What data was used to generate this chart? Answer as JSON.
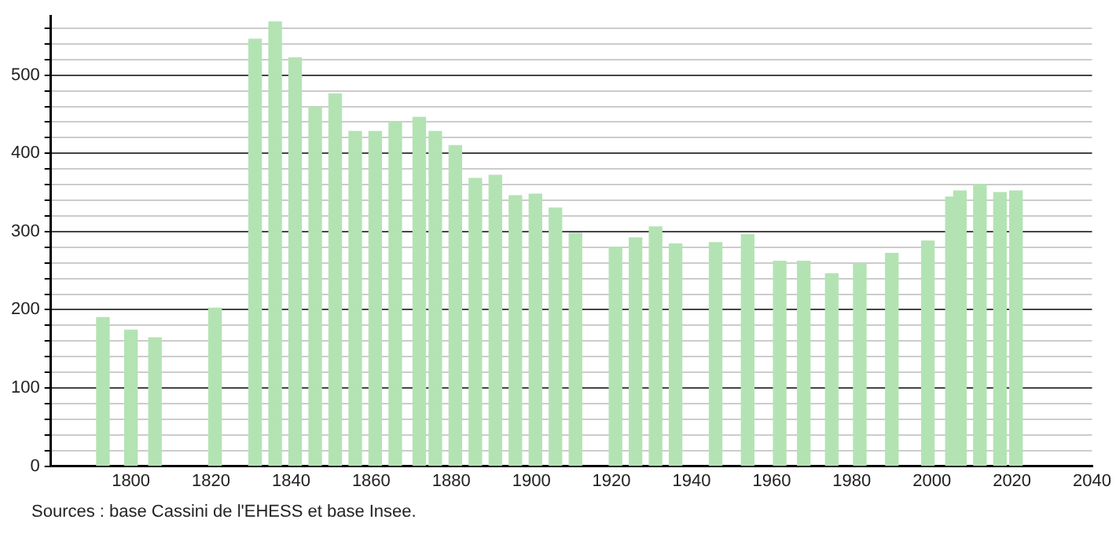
{
  "chart_data": {
    "type": "bar",
    "color": "#b3e3b3",
    "x": [
      1793,
      1800,
      1806,
      1821,
      1831,
      1836,
      1841,
      1846,
      1851,
      1856,
      1861,
      1866,
      1872,
      1876,
      1881,
      1886,
      1891,
      1896,
      1901,
      1906,
      1911,
      1921,
      1926,
      1931,
      1936,
      1946,
      1954,
      1962,
      1968,
      1975,
      1982,
      1990,
      1999,
      2005,
      2007,
      2012,
      2017,
      2021
    ],
    "values": [
      190,
      174,
      164,
      202,
      546,
      568,
      522,
      459,
      476,
      428,
      428,
      440,
      446,
      428,
      410,
      368,
      372,
      346,
      348,
      330,
      298,
      280,
      292,
      306,
      284,
      286,
      296,
      262,
      262,
      246,
      259,
      272,
      288,
      344,
      352,
      360,
      350,
      352
    ],
    "xlim": [
      1780,
      2040
    ],
    "xticks": [
      1800,
      1820,
      1840,
      1860,
      1880,
      1900,
      1920,
      1940,
      1960,
      1980,
      2000,
      2020,
      2040
    ],
    "ylim": [
      0,
      576
    ],
    "yticks": [
      0,
      {
        "value": 20,
        "label": null
      },
      {
        "value": 40,
        "label": null
      },
      {
        "value": 60,
        "label": null
      },
      {
        "value": 80,
        "label": null
      },
      100,
      {
        "value": 120,
        "label": null
      },
      {
        "value": 140,
        "label": null
      },
      {
        "value": 160,
        "label": null
      },
      {
        "value": 180,
        "label": null
      },
      200,
      {
        "value": 220,
        "label": null
      },
      {
        "value": 240,
        "label": null
      },
      {
        "value": 260,
        "label": null
      },
      {
        "value": 280,
        "label": null
      },
      300,
      {
        "value": 320,
        "label": null
      },
      {
        "value": 340,
        "label": null
      },
      {
        "value": 360,
        "label": null
      },
      {
        "value": 380,
        "label": null
      },
      400,
      {
        "value": 420,
        "label": null
      },
      {
        "value": 440,
        "label": null
      },
      {
        "value": 460,
        "label": null
      },
      {
        "value": 480,
        "label": null
      },
      500,
      {
        "value": 520,
        "label": null
      },
      {
        "value": 540,
        "label": null
      },
      {
        "value": 560,
        "label": null
      }
    ],
    "grid": "y",
    "annotations": [
      "Sources : base Cassini de l'EHESS et base Insee."
    ]
  }
}
